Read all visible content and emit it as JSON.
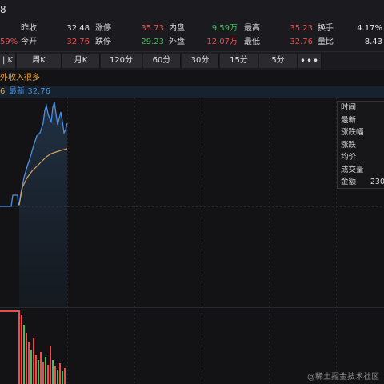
{
  "header": {
    "title": "8"
  },
  "stats": {
    "row1": [
      {
        "label": "",
        "value": "",
        "value_class": "red"
      },
      {
        "label": "昨收",
        "value": "32.48",
        "value_class": "white"
      },
      {
        "label": "涨停",
        "value": "35.73",
        "value_class": "red"
      },
      {
        "label": "内盘",
        "value": "9.59万",
        "value_class": "green"
      },
      {
        "label": "最高",
        "value": "35.23",
        "value_class": "red"
      },
      {
        "label": "换手",
        "value": "4.17%",
        "value_class": "white"
      }
    ],
    "row2": [
      {
        "label": "",
        "value": "59%",
        "value_class": "red"
      },
      {
        "label": "今开",
        "value": "32.76",
        "value_class": "red"
      },
      {
        "label": "跌停",
        "value": "29.23",
        "value_class": "green"
      },
      {
        "label": "外盘",
        "value": "12.07万",
        "value_class": "red"
      },
      {
        "label": "最低",
        "value": "32.76",
        "value_class": "red"
      },
      {
        "label": "量比",
        "value": "8.43",
        "value_class": "white"
      }
    ]
  },
  "tabs": [
    "| K",
    "周K",
    "月K",
    "120分",
    "60分",
    "30分",
    "15分",
    "5分",
    "•••"
  ],
  "note": "外收入很多",
  "infobar": {
    "a": "6",
    "b": "最新:32.76"
  },
  "tooltip": {
    "rows": [
      {
        "label": "时间",
        "value": ""
      },
      {
        "label": "最新",
        "value": ""
      },
      {
        "label": "涨跌幅",
        "value": ""
      },
      {
        "label": "涨跌",
        "value": ""
      },
      {
        "label": "均价",
        "value": ""
      },
      {
        "label": "成交量",
        "value": ""
      },
      {
        "label": "金额",
        "value": "230"
      }
    ]
  },
  "watermark": "@稀土掘金技术社区",
  "colors": {
    "price_line": "#4a90e2",
    "avg_line": "#d9a15a",
    "up": "#f04b4b",
    "down": "#3fbf5a"
  }
}
